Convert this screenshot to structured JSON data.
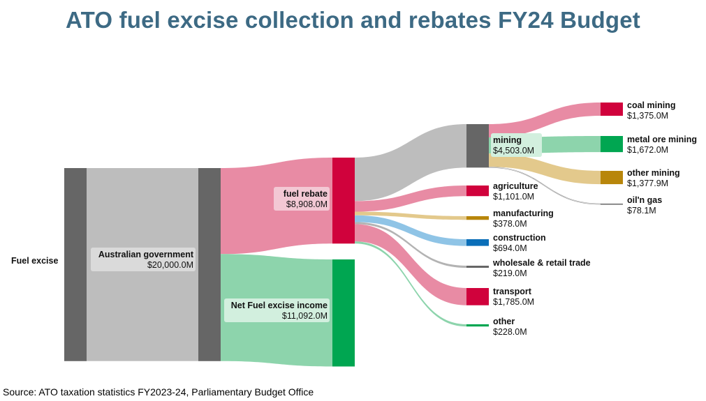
{
  "title": "ATO fuel excise collection and rebates FY24 Budget",
  "source": "Source: ATO taxation statistics FY2023-24, Parliamentary Budget Office",
  "chart_data": {
    "type": "sankey",
    "title": "ATO fuel excise collection and rebates FY24 Budget",
    "unit": "$M",
    "nodes": [
      {
        "id": "fuel_excise",
        "name": "Fuel excise",
        "value_label": "",
        "color": "#666666"
      },
      {
        "id": "aus_gov",
        "name": "Australian government",
        "value_label": "$20,000.0M",
        "color": "#666666"
      },
      {
        "id": "fuel_rebate",
        "name": "fuel rebate",
        "value_label": "$8,908.0M",
        "color": "#d0023c"
      },
      {
        "id": "net_income",
        "name": "Net Fuel excise income",
        "value_label": "$11,092.0M",
        "color": "#00a651"
      },
      {
        "id": "mining",
        "name": "mining",
        "value_label": "$4,503.0M",
        "color": "#666666"
      },
      {
        "id": "agriculture",
        "name": "agriculture",
        "value_label": "$1,101.0M",
        "color": "#d0023c"
      },
      {
        "id": "manufacturing",
        "name": "manufacturing",
        "value_label": "$378.0M",
        "color": "#b8860b"
      },
      {
        "id": "construction",
        "name": "construction",
        "value_label": "$694.0M",
        "color": "#0a6eb8"
      },
      {
        "id": "wholesale",
        "name": "wholesale & retail trade",
        "value_label": "$219.0M",
        "color": "#666666"
      },
      {
        "id": "transport",
        "name": "transport",
        "value_label": "$1,785.0M",
        "color": "#d0023c"
      },
      {
        "id": "other",
        "name": "other",
        "value_label": "$228.0M",
        "color": "#00a651"
      },
      {
        "id": "coal",
        "name": "coal mining",
        "value_label": "$1,375.0M",
        "color": "#d0023c"
      },
      {
        "id": "metal",
        "name": "metal ore mining",
        "value_label": "$1,672.0M",
        "color": "#00a651"
      },
      {
        "id": "other_mining",
        "name": "other mining",
        "value_label": "$1,377.9M",
        "color": "#b8860b"
      },
      {
        "id": "oil_gas",
        "name": "oil'n gas",
        "value_label": "$78.1M",
        "color": "#666666"
      }
    ],
    "links": [
      {
        "source": "fuel_excise",
        "target": "aus_gov",
        "value": 20000.0,
        "color": "#bdbdbd"
      },
      {
        "source": "aus_gov",
        "target": "fuel_rebate",
        "value": 8908.0,
        "color": "#e88ba4"
      },
      {
        "source": "aus_gov",
        "target": "net_income",
        "value": 11092.0,
        "color": "#8dd4ac"
      },
      {
        "source": "fuel_rebate",
        "target": "mining",
        "value": 4503.0,
        "color": "#bdbdbd"
      },
      {
        "source": "fuel_rebate",
        "target": "agriculture",
        "value": 1101.0,
        "color": "#e88ba4"
      },
      {
        "source": "fuel_rebate",
        "target": "manufacturing",
        "value": 378.0,
        "color": "#e3c98c"
      },
      {
        "source": "fuel_rebate",
        "target": "construction",
        "value": 694.0,
        "color": "#8fc4e6"
      },
      {
        "source": "fuel_rebate",
        "target": "wholesale",
        "value": 219.0,
        "color": "#b3b3b3"
      },
      {
        "source": "fuel_rebate",
        "target": "transport",
        "value": 1785.0,
        "color": "#e88ba4"
      },
      {
        "source": "fuel_rebate",
        "target": "other",
        "value": 228.0,
        "color": "#8dd4ac"
      },
      {
        "source": "mining",
        "target": "coal",
        "value": 1375.0,
        "color": "#e88ba4"
      },
      {
        "source": "mining",
        "target": "metal",
        "value": 1672.0,
        "color": "#8dd4ac"
      },
      {
        "source": "mining",
        "target": "other_mining",
        "value": 1377.9,
        "color": "#e3c98c"
      },
      {
        "source": "mining",
        "target": "oil_gas",
        "value": 78.1,
        "color": "#bdbdbd"
      }
    ]
  }
}
